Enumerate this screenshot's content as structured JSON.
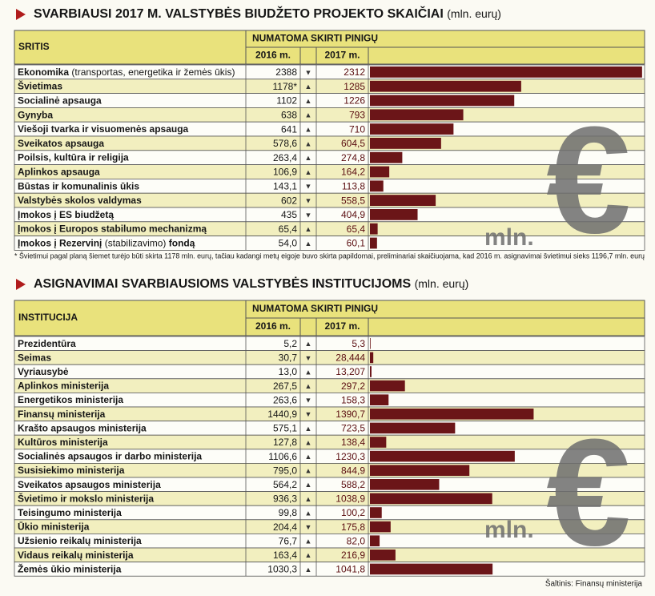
{
  "tables": [
    {
      "title": "SVARBIAUSI 2017 M. VALSTYBĖS BIUDŽETO PROJEKTO SKAIČIAI",
      "unit": "(mln. eurų)",
      "header": {
        "first": "SRITIS",
        "group": "NUMATOMA SKIRTI PINIGŲ",
        "col2016": "2016 m.",
        "col2017": "2017 m."
      },
      "rows": [
        {
          "name": "Ekonomika",
          "note": "(transportas, energetika ir žemės ūkis)",
          "v2016": "2388",
          "trend": "▼",
          "v2017": {
            "value": 2312,
            "label": "2312"
          }
        },
        {
          "name": "Švietimas",
          "v2016": "1178*",
          "trend": "▲",
          "v2017": {
            "value": 1285,
            "label": "1285"
          }
        },
        {
          "name": "Socialinė apsauga",
          "v2016": "1102",
          "trend": "▲",
          "v2017": {
            "value": 1226,
            "label": "1226"
          }
        },
        {
          "name": "Gynyba",
          "v2016": "638",
          "trend": "▲",
          "v2017": {
            "value": 793,
            "label": "793"
          }
        },
        {
          "name": "Viešoji tvarka ir visuomenės apsauga",
          "v2016": "641",
          "trend": "▲",
          "v2017": {
            "value": 710,
            "label": "710"
          }
        },
        {
          "name": "Sveikatos apsauga",
          "v2016": "578,6",
          "trend": "▲",
          "v2017": {
            "value": 604.5,
            "label": "604,5"
          }
        },
        {
          "name": "Poilsis, kultūra ir religija",
          "v2016": "263,4",
          "trend": "▲",
          "v2017": {
            "value": 274.8,
            "label": "274,8"
          }
        },
        {
          "name": "Aplinkos apsauga",
          "v2016": "106,9",
          "trend": "▲",
          "v2017": {
            "value": 164.2,
            "label": "164,2"
          }
        },
        {
          "name": "Būstas ir komunalinis ūkis",
          "v2016": "143,1",
          "trend": "▼",
          "v2017": {
            "value": 113.8,
            "label": "113,8"
          }
        },
        {
          "name": "Valstybės skolos valdymas",
          "v2016": "602",
          "trend": "▼",
          "v2017": {
            "value": 558.5,
            "label": "558,5"
          }
        },
        {
          "name": "Įmokos į ES biudžetą",
          "v2016": "435",
          "trend": "▼",
          "v2017": {
            "value": 404.9,
            "label": "404,9"
          }
        },
        {
          "name": "Įmokos į Europos stabilumo mechanizmą",
          "v2016": "65,4",
          "trend": "▲",
          "v2017": {
            "value": 65.4,
            "label": "65,4"
          }
        },
        {
          "name": "Įmokos į Rezervinį",
          "note": "(stabilizavimo)",
          "name_end": "fondą",
          "v2016": "54,0",
          "trend": "▲",
          "v2017": {
            "value": 60.1,
            "label": "60,1"
          }
        }
      ],
      "footnote": "* Švietimui pagal planą šiemet turėjo būti skirta 1178 mln. eurų, tačiau kadangi metų eigoje buvo skirta papildomai, preliminariai skaičiuojama, kad 2016 m. asignavimai švietimui sieks 1196,7 mln. eurų"
    },
    {
      "title": "ASIGNAVIMAI SVARBIAUSIOMS VALSTYBĖS INSTITUCIJOMS",
      "unit": "(mln. eurų)",
      "header": {
        "first": "INSTITUCIJA",
        "group": "NUMATOMA SKIRTI PINIGŲ",
        "col2016": "2016 m.",
        "col2017": "2017 m."
      },
      "rows": [
        {
          "name": "Prezidentūra",
          "v2016": "5,2",
          "trend": "▲",
          "v2017": {
            "value": 5.3,
            "label": "5,3"
          }
        },
        {
          "name": "Seimas",
          "v2016": "30,7",
          "trend": "▼",
          "v2017": {
            "value": 28.444,
            "label": "28,444"
          }
        },
        {
          "name": "Vyriausybė",
          "v2016": "13,0",
          "trend": "▲",
          "v2017": {
            "value": 13.207,
            "label": "13,207"
          }
        },
        {
          "name": "Aplinkos ministerija",
          "v2016": "267,5",
          "trend": "▲",
          "v2017": {
            "value": 297.2,
            "label": "297,2"
          }
        },
        {
          "name": "Energetikos ministerija",
          "v2016": "263,6",
          "trend": "▼",
          "v2017": {
            "value": 158.3,
            "label": "158,3"
          }
        },
        {
          "name": "Finansų ministerija",
          "v2016": "1440,9",
          "trend": "▼",
          "v2017": {
            "value": 1390.7,
            "label": "1390,7"
          }
        },
        {
          "name": "Krašto apsaugos ministerija",
          "v2016": "575,1",
          "trend": "▲",
          "v2017": {
            "value": 723.5,
            "label": "723,5"
          }
        },
        {
          "name": "Kultūros ministerija",
          "v2016": "127,8",
          "trend": "▲",
          "v2017": {
            "value": 138.4,
            "label": "138,4"
          }
        },
        {
          "name": "Socialinės apsaugos ir darbo ministerija",
          "v2016": "1106,6",
          "trend": "▲",
          "v2017": {
            "value": 1230.3,
            "label": "1230,3"
          }
        },
        {
          "name": "Susisiekimo ministerija",
          "v2016": "795,0",
          "trend": "▲",
          "v2017": {
            "value": 844.9,
            "label": "844,9"
          }
        },
        {
          "name": "Sveikatos apsaugos ministerija",
          "v2016": "564,2",
          "trend": "▲",
          "v2017": {
            "value": 588.2,
            "label": "588,2"
          }
        },
        {
          "name": "Švietimo ir mokslo ministerija",
          "v2016": "936,3",
          "trend": "▲",
          "v2017": {
            "value": 1038.9,
            "label": "1038,9"
          }
        },
        {
          "name": "Teisingumo ministerija",
          "v2016": "99,8",
          "trend": "▲",
          "v2017": {
            "value": 100.2,
            "label": "100,2"
          }
        },
        {
          "name": "Ūkio ministerija",
          "v2016": "204,4",
          "trend": "▼",
          "v2017": {
            "value": 175.8,
            "label": "175,8"
          }
        },
        {
          "name": "Užsienio reikalų ministerija",
          "v2016": "76,7",
          "trend": "▲",
          "v2017": {
            "value": 82.0,
            "label": "82,0"
          }
        },
        {
          "name": "Vidaus reikalų ministerija",
          "v2016": "163,4",
          "trend": "▲",
          "v2017": {
            "value": 216.9,
            "label": "216,9"
          }
        },
        {
          "name": "Žemės ūkio ministerija",
          "v2016": "1030,3",
          "trend": "▲",
          "v2017": {
            "value": 1041.8,
            "label": "1041,8"
          }
        }
      ]
    }
  ],
  "watermark": {
    "symbol": "€",
    "text": "mln."
  },
  "source": "Šaltinis: Finansų ministerija"
}
